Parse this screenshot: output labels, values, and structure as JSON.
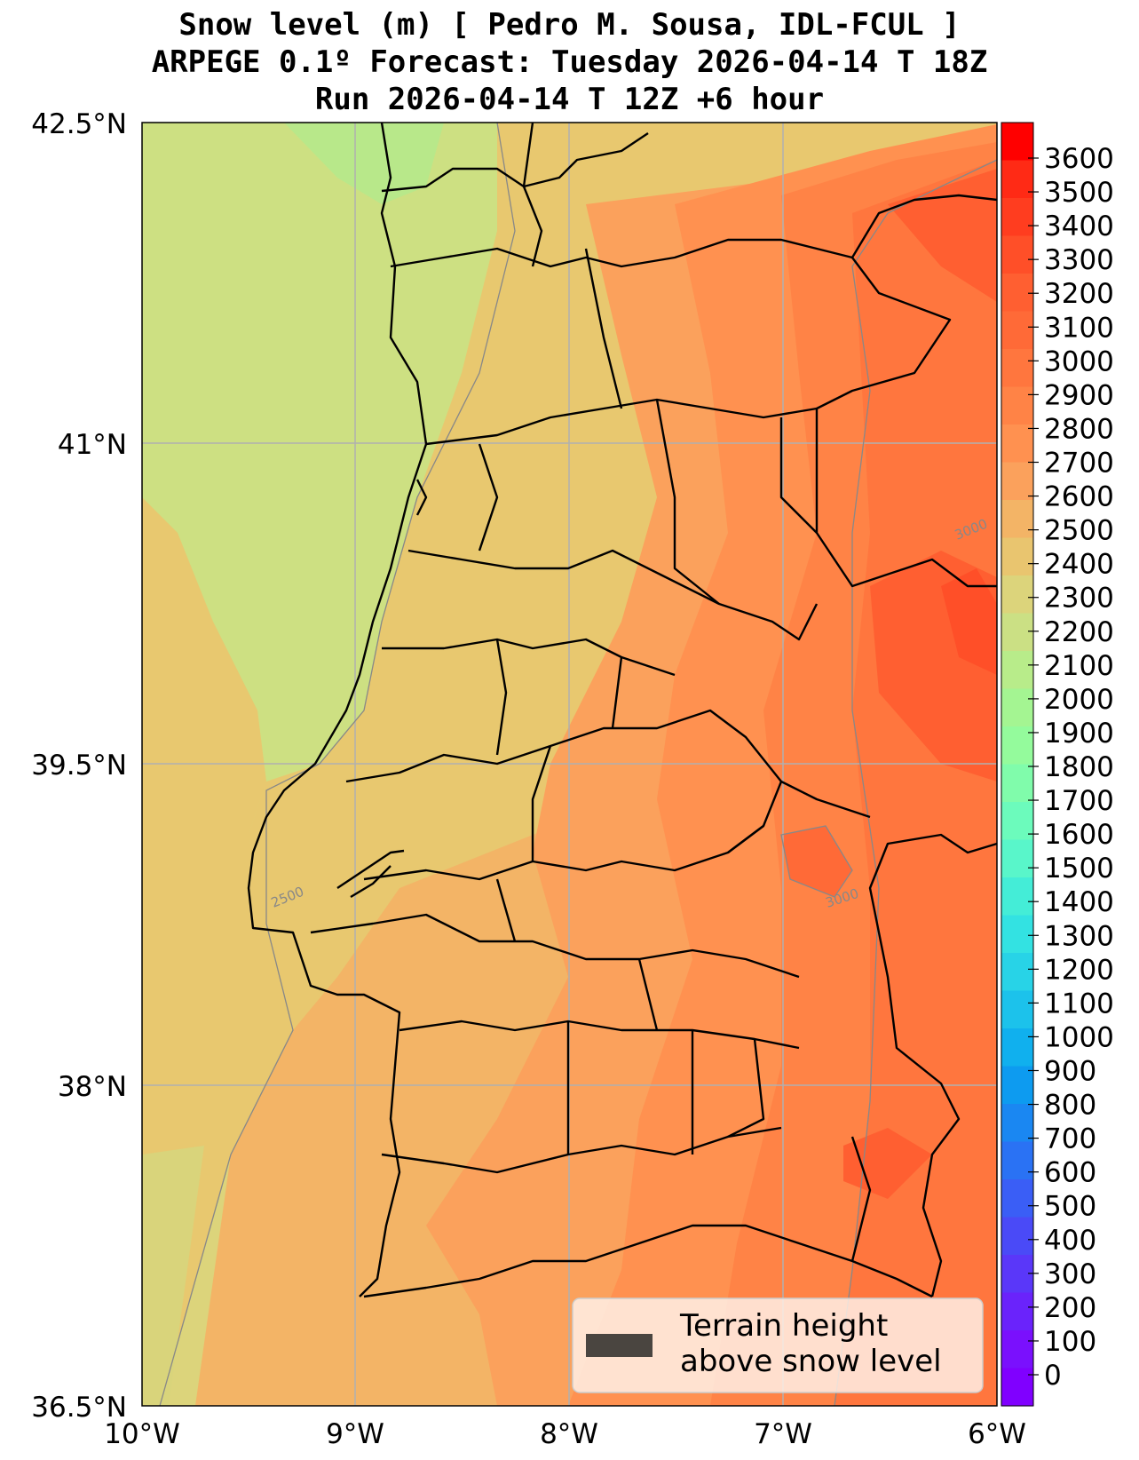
{
  "title": {
    "line1": "Snow level (m) [ Pedro M. Sousa, IDL-FCUL ]",
    "line2": "ARPEGE 0.1º Forecast: Tuesday 2026-04-14 T 18Z",
    "line3": "Run 2026-04-14 T 12Z +6 hour"
  },
  "axes": {
    "lat_labels": [
      "42.5°N",
      "41°N",
      "39.5°N",
      "38°N",
      "36.5°N"
    ],
    "lon_labels": [
      "10°W",
      "9°W",
      "8°W",
      "7°W",
      "6°W"
    ]
  },
  "colorbar": {
    "labels": [
      "3600",
      "3500",
      "3400",
      "3300",
      "3200",
      "3100",
      "3000",
      "2900",
      "2800",
      "2700",
      "2600",
      "2500",
      "2400",
      "2300",
      "2200",
      "2100",
      "2000",
      "1900",
      "1800",
      "1700",
      "1600",
      "1500",
      "1400",
      "1300",
      "1200",
      "1100",
      "1000",
      "900",
      "800",
      "700",
      "600",
      "500",
      "400",
      "300",
      "200",
      "100",
      "0"
    ],
    "colors": [
      "#ff0000",
      "#ff2a15",
      "#ff3d1f",
      "#ff4f28",
      "#ff5f31",
      "#ff6a37",
      "#ff763e",
      "#ff8346",
      "#ff9150",
      "#fba15c",
      "#f3b466",
      "#e9c56f",
      "#dcd47b",
      "#cbe084",
      "#b8ec8a",
      "#a4f592",
      "#94fb9c",
      "#80fcab",
      "#6cfbbc",
      "#59f6ca",
      "#44edd7",
      "#33e2e2",
      "#28d3e7",
      "#1cc2eb",
      "#10b0ee",
      "#0d9bf0",
      "#1a87f2",
      "#2a72f4",
      "#3a5ef6",
      "#4a4af7",
      "#5a37f9",
      "#6a23fb",
      "#7a10fd",
      "#8000ff"
    ]
  },
  "contour_labels": [
    "2500",
    "3000",
    "3000"
  ],
  "legend": {
    "line1": "Terrain height",
    "line2": "above snow level",
    "swatch_color": "#4a4540"
  }
}
